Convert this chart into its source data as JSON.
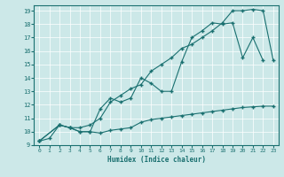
{
  "xlabel": "Humidex (Indice chaleur)",
  "bg_color": "#cce8e8",
  "line_color": "#1a7070",
  "grid_color": "#b8d8d8",
  "xlim": [
    -0.5,
    23.5
  ],
  "ylim": [
    9,
    19.4
  ],
  "xticks": [
    0,
    1,
    2,
    3,
    4,
    5,
    6,
    7,
    8,
    9,
    10,
    11,
    12,
    13,
    14,
    15,
    16,
    17,
    18,
    19,
    20,
    21,
    22,
    23
  ],
  "yticks": [
    9,
    10,
    11,
    12,
    13,
    14,
    15,
    16,
    17,
    18,
    19
  ],
  "line1_x": [
    0,
    1,
    2,
    3,
    4,
    5,
    6,
    7,
    8,
    9,
    10,
    11,
    12,
    13,
    14,
    15,
    16,
    17,
    18,
    19,
    20,
    21,
    22,
    23
  ],
  "line1_y": [
    9.3,
    9.5,
    10.5,
    10.3,
    10.0,
    10.0,
    9.9,
    10.1,
    10.2,
    10.3,
    10.7,
    10.9,
    11.0,
    11.1,
    11.2,
    11.3,
    11.4,
    11.5,
    11.6,
    11.7,
    11.8,
    11.85,
    11.9,
    11.9
  ],
  "line2_x": [
    0,
    2,
    3,
    4,
    5,
    6,
    7,
    8,
    9,
    10,
    11,
    12,
    13,
    14,
    15,
    16,
    17,
    18,
    19,
    20,
    21,
    22
  ],
  "line2_y": [
    9.3,
    10.5,
    10.3,
    10.0,
    10.0,
    11.7,
    12.5,
    12.2,
    12.5,
    14.0,
    13.6,
    13.0,
    13.0,
    15.2,
    17.0,
    17.5,
    18.1,
    18.0,
    18.1,
    15.5,
    17.0,
    15.3
  ],
  "line3_x": [
    0,
    2,
    3,
    4,
    5,
    6,
    7,
    8,
    9,
    10,
    11,
    12,
    13,
    14,
    15,
    16,
    17,
    18,
    19,
    20,
    21,
    22,
    23
  ],
  "line3_y": [
    9.3,
    10.5,
    10.3,
    10.3,
    10.5,
    11.0,
    12.2,
    12.7,
    13.2,
    13.5,
    14.5,
    15.0,
    15.5,
    16.2,
    16.5,
    17.0,
    17.5,
    18.1,
    19.0,
    19.0,
    19.1,
    19.0,
    15.3
  ]
}
